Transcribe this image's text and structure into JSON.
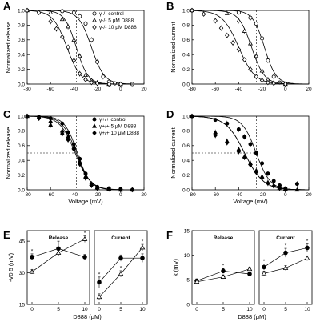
{
  "chart_data": [
    {
      "panel": "A",
      "type": "scatter",
      "ylabel": "Normalized release",
      "xlabel": "",
      "xlim": [
        -80,
        20
      ],
      "ylim": [
        0,
        1.0
      ],
      "xticks": [
        -80,
        -60,
        -40,
        -20,
        0,
        20
      ],
      "yticks": [
        0.0,
        0.2,
        0.4,
        0.6,
        0.8,
        1.0
      ],
      "legend": "top-right",
      "vline": -38,
      "series": [
        {
          "name": "γ-/- control",
          "marker": "circle-open",
          "fit": {
            "v": -25,
            "k": 5.5
          },
          "x": [
            -80,
            -50,
            -40,
            -35,
            -30,
            -25,
            -20,
            -15,
            -10,
            -5,
            0,
            10
          ],
          "y": [
            1.0,
            0.99,
            0.97,
            0.92,
            0.82,
            0.6,
            0.3,
            0.1,
            0.03,
            0.01,
            0.0,
            0.0
          ]
        },
        {
          "name": "γ-/- 5 μM D888",
          "marker": "triangle-open",
          "fit": {
            "v": -38,
            "k": 5.0
          },
          "x": [
            -80,
            -60,
            -50,
            -45,
            -40,
            -35,
            -30,
            -25,
            -20,
            -10,
            0
          ],
          "y": [
            1.0,
            0.97,
            0.88,
            0.78,
            0.6,
            0.38,
            0.12,
            0.05,
            0.02,
            0.0,
            0.0
          ]
        },
        {
          "name": "γ-/- 10 μM D888",
          "marker": "diamond-open",
          "fit": {
            "v": -46,
            "k": 6.0
          },
          "x": [
            -80,
            -70,
            -60,
            -55,
            -50,
            -45,
            -40,
            -35,
            -30,
            -25,
            -20,
            -10,
            0
          ],
          "y": [
            1.0,
            0.97,
            0.85,
            0.75,
            0.64,
            0.5,
            0.32,
            0.14,
            0.06,
            0.02,
            0.01,
            0.0,
            0.0
          ]
        }
      ]
    },
    {
      "panel": "B",
      "type": "scatter",
      "ylabel": "Normalized current",
      "xlabel": "",
      "xlim": [
        -80,
        20
      ],
      "ylim": [
        0,
        1.0
      ],
      "xticks": [
        -80,
        -60,
        -40,
        -20,
        0,
        20
      ],
      "yticks": [
        0.0,
        0.2,
        0.4,
        0.6,
        0.8,
        1.0
      ],
      "vline": -25,
      "series": [
        {
          "marker": "circle-open",
          "fit": {
            "v": -18,
            "k": 5.0
          },
          "x": [
            -80,
            -40,
            -30,
            -25,
            -20,
            -15,
            -10,
            -5,
            0
          ],
          "y": [
            1.0,
            0.97,
            0.9,
            0.82,
            0.62,
            0.32,
            0.1,
            0.02,
            0.0
          ]
        },
        {
          "marker": "triangle-open",
          "fit": {
            "v": -29,
            "k": 5.5
          },
          "x": [
            -80,
            -50,
            -40,
            -35,
            -30,
            -25,
            -20,
            -15,
            -10,
            0
          ],
          "y": [
            1.0,
            0.96,
            0.86,
            0.72,
            0.55,
            0.38,
            0.18,
            0.06,
            0.02,
            0.0
          ]
        },
        {
          "marker": "diamond-open",
          "fit": {
            "v": -40,
            "k": 7.0
          },
          "x": [
            -80,
            -70,
            -60,
            -55,
            -50,
            -45,
            -40,
            -35,
            -30,
            -25,
            -20,
            -15,
            -10,
            0
          ],
          "y": [
            1.0,
            0.95,
            0.86,
            0.76,
            0.66,
            0.56,
            0.47,
            0.33,
            0.2,
            0.1,
            0.05,
            0.02,
            0.01,
            0.0
          ]
        }
      ]
    },
    {
      "panel": "C",
      "type": "scatter",
      "ylabel": "Normalized release",
      "xlabel": "Voltage (mV)",
      "xlim": [
        -80,
        20
      ],
      "ylim": [
        0,
        1.0
      ],
      "xticks": [
        -80,
        -60,
        -40,
        -20,
        0,
        20
      ],
      "yticks": [
        0.0,
        0.2,
        0.4,
        0.6,
        0.8,
        1.0
      ],
      "legend": "top-right",
      "vline": -38,
      "hline": 0.5,
      "series": [
        {
          "name": "γ+/+ control",
          "marker": "circle-filled",
          "fit": {
            "v": -37,
            "k": 5.5
          },
          "x": [
            -80,
            -70,
            -60,
            -50,
            -45,
            -40,
            -35,
            -30,
            -25,
            -20,
            -10,
            0,
            10
          ],
          "y": [
            1.0,
            0.99,
            0.97,
            0.9,
            0.78,
            0.62,
            0.42,
            0.22,
            0.08,
            0.04,
            0.02,
            0.01,
            0.0
          ]
        },
        {
          "name": "γ+/+ 5 μM D888",
          "marker": "triangle-filled",
          "fit": {
            "v": -38,
            "k": 6.0
          },
          "x": [
            -80,
            -70,
            -60,
            -50,
            -45,
            -40,
            -35,
            -30,
            -25,
            -20,
            -10,
            0,
            10
          ],
          "y": [
            1.0,
            0.98,
            0.88,
            0.8,
            0.72,
            0.58,
            0.38,
            0.18,
            0.08,
            0.03,
            0.01,
            0.0,
            0.0
          ]
        },
        {
          "name": "γ+/+ 10 μM D888",
          "marker": "diamond-filled",
          "fit": {
            "v": -39,
            "k": 6.5
          },
          "x": [
            -80,
            -70,
            -60,
            -50,
            -45,
            -40,
            -35,
            -30,
            -25,
            -20,
            -10,
            0,
            10
          ],
          "y": [
            1.0,
            0.97,
            0.92,
            0.76,
            0.68,
            0.55,
            0.35,
            0.16,
            0.06,
            0.02,
            0.01,
            0.0,
            0.0
          ]
        }
      ]
    },
    {
      "panel": "D",
      "type": "scatter",
      "ylabel": "Normalized current",
      "xlabel": "Voltage (mV)",
      "xlim": [
        -80,
        20
      ],
      "ylim": [
        0,
        1.0
      ],
      "xticks": [
        -80,
        -60,
        -40,
        -20,
        0,
        20
      ],
      "yticks": [
        0.0,
        0.2,
        0.4,
        0.6,
        0.8,
        1.0
      ],
      "vline": -25,
      "hline": 0.5,
      "series": [
        {
          "marker": "circle-filled",
          "fit": {
            "v": -25,
            "k": 6.0
          },
          "x": [
            -80,
            -60,
            -50,
            -40,
            -35,
            -30,
            -25,
            -20,
            -15,
            -10,
            -5,
            0,
            10
          ],
          "y": [
            1.0,
            0.95,
            0.9,
            0.82,
            0.72,
            0.62,
            0.5,
            0.36,
            0.22,
            0.12,
            0.06,
            0.02,
            0.08
          ]
        },
        {
          "marker": "triangle-filled",
          "fit": {
            "v": -35,
            "k": 8.0
          },
          "x": [
            -80,
            -60,
            -50,
            -40,
            -35,
            -30,
            -25,
            -20,
            -15,
            -10,
            -5,
            0,
            10
          ],
          "y": [
            1.0,
            0.78,
            0.66,
            0.55,
            0.45,
            0.36,
            0.26,
            0.18,
            0.1,
            0.06,
            0.03,
            0.01,
            0.0
          ]
        },
        {
          "marker": "diamond-filled",
          "fit": {
            "v": -35,
            "k": 8.0
          },
          "x": [
            -80,
            -60,
            -50,
            -40,
            -35,
            -30,
            -25,
            -20,
            -15,
            -10,
            -5,
            0
          ],
          "y": [
            1.0,
            0.74,
            0.64,
            0.52,
            0.44,
            0.34,
            0.24,
            0.16,
            0.09,
            0.05,
            0.02,
            0.0
          ]
        }
      ]
    },
    {
      "panel": "E",
      "type": "line",
      "ylabel": "-V0.5 (mV)",
      "ylim": [
        15,
        50
      ],
      "yticks": [
        15,
        30,
        45
      ],
      "xlabel": "D888 (μM)",
      "x": [
        0,
        5,
        10
      ],
      "xticks": [
        0,
        5,
        10
      ],
      "subplots": [
        {
          "title": "Release",
          "series": [
            {
              "marker": "circle-filled",
              "values": [
                37.5,
                41.5,
                37.5
              ],
              "err": [
                1.5,
                3.5,
                1.2
              ],
              "stars": [
                true,
                false,
                false
              ]
            },
            {
              "marker": "triangle-open",
              "values": [
                30.5,
                39.5,
                46
              ],
              "err": [
                1,
                1.5,
                1.5
              ],
              "stars": [
                false,
                false,
                true
              ]
            }
          ]
        },
        {
          "title": "Current",
          "series": [
            {
              "marker": "circle-filled",
              "values": [
                25.5,
                37,
                37
              ],
              "err": [
                2.5,
                1.5,
                2
              ],
              "stars": [
                true,
                false,
                false
              ]
            },
            {
              "marker": "triangle-open",
              "values": [
                18.5,
                29.5,
                42
              ],
              "err": [
                1.5,
                1.5,
                1.5
              ],
              "stars": [
                false,
                true,
                true
              ]
            }
          ]
        }
      ]
    },
    {
      "panel": "F",
      "type": "line",
      "ylabel": "k (mV)",
      "ylim": [
        0,
        15
      ],
      "yticks": [
        0,
        5,
        10,
        15
      ],
      "xlabel": "D888 (μM)",
      "x": [
        0,
        5,
        10
      ],
      "xticks": [
        0,
        5,
        10
      ],
      "subplots": [
        {
          "title": "Release",
          "series": [
            {
              "marker": "circle-filled",
              "values": [
                4.8,
                6.8,
                6.2
              ],
              "err": [
                0.4,
                0.5,
                0.4
              ],
              "stars": [
                false,
                true,
                true
              ]
            },
            {
              "marker": "triangle-open",
              "values": [
                4.6,
                5.6,
                7.2
              ],
              "err": [
                0.3,
                0.4,
                0.4
              ],
              "stars": [
                false,
                false,
                false
              ]
            }
          ]
        },
        {
          "title": "Current",
          "series": [
            {
              "marker": "circle-filled",
              "values": [
                7.6,
                10.5,
                11.5
              ],
              "err": [
                0.6,
                0.9,
                0.8
              ],
              "stars": [
                true,
                true,
                true
              ]
            },
            {
              "marker": "triangle-open",
              "values": [
                6.3,
                7.4,
                9.4
              ],
              "err": [
                0.5,
                0.5,
                0.5
              ],
              "stars": [
                false,
                false,
                false
              ]
            }
          ]
        }
      ]
    }
  ]
}
